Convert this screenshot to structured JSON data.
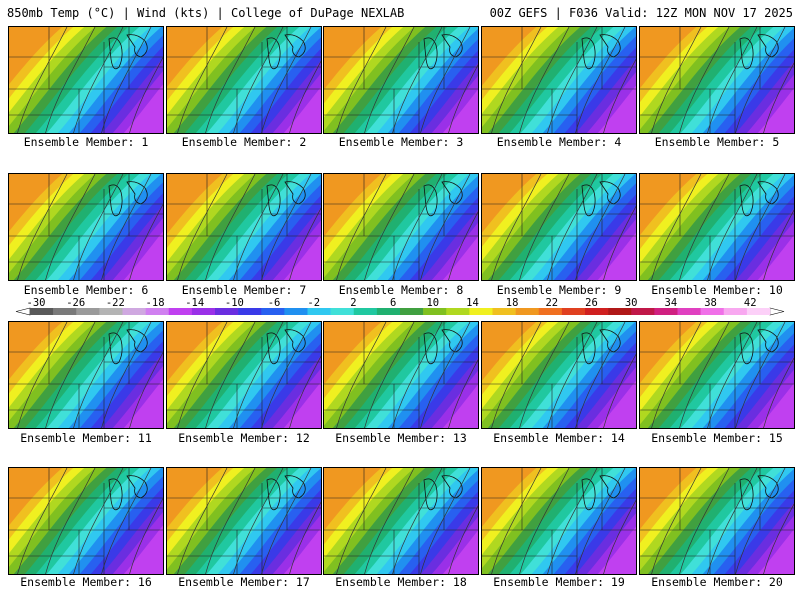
{
  "header": {
    "title": "850mb Temp (°C) | Wind (kts) | College of DuPage NEXLAB",
    "run_info": "00Z GEFS | F036 Valid: 12Z MON NOV 17 2025"
  },
  "member_label_prefix": "Ensemble Member: ",
  "members": [
    "1",
    "2",
    "3",
    "4",
    "5",
    "6",
    "7",
    "8",
    "9",
    "10",
    "11",
    "12",
    "13",
    "14",
    "15",
    "16",
    "17",
    "18",
    "19",
    "20"
  ],
  "colorbar": {
    "ticks": [
      "-30",
      "-26",
      "-22",
      "-18",
      "-14",
      "-10",
      "-6",
      "-2",
      "2",
      "6",
      "10",
      "14",
      "18",
      "22",
      "26",
      "30",
      "34",
      "38",
      "42"
    ],
    "colors": [
      "#5a5a5a",
      "#7a7a7a",
      "#9a9a9a",
      "#b4b4b4",
      "#cfa8e0",
      "#d080f0",
      "#c040f0",
      "#9a30e8",
      "#6a2ee0",
      "#3a3ae8",
      "#2860f0",
      "#2090f0",
      "#30c8f0",
      "#40e0d8",
      "#20c8a0",
      "#20b070",
      "#40a040",
      "#80c020",
      "#b0d820",
      "#f0f020",
      "#f0c020",
      "#f09820",
      "#f07020",
      "#e04020",
      "#d02020",
      "#b01818",
      "#c01848",
      "#d02080",
      "#e040c0",
      "#f070e8",
      "#f8a8f0",
      "#fcd0f8"
    ]
  },
  "field_colors": {
    "ramp": [
      "#f09820",
      "#f0c020",
      "#f0f020",
      "#b0d820",
      "#80c020",
      "#40a040",
      "#20b070",
      "#20c8a0",
      "#40e0d8",
      "#30c8f0",
      "#2090f0",
      "#2860f0",
      "#3a3ae8",
      "#6a2ee0",
      "#9a30e8",
      "#c040f0"
    ]
  },
  "map_caption": "GEFS 850mb temperature ensemble members over central United States"
}
